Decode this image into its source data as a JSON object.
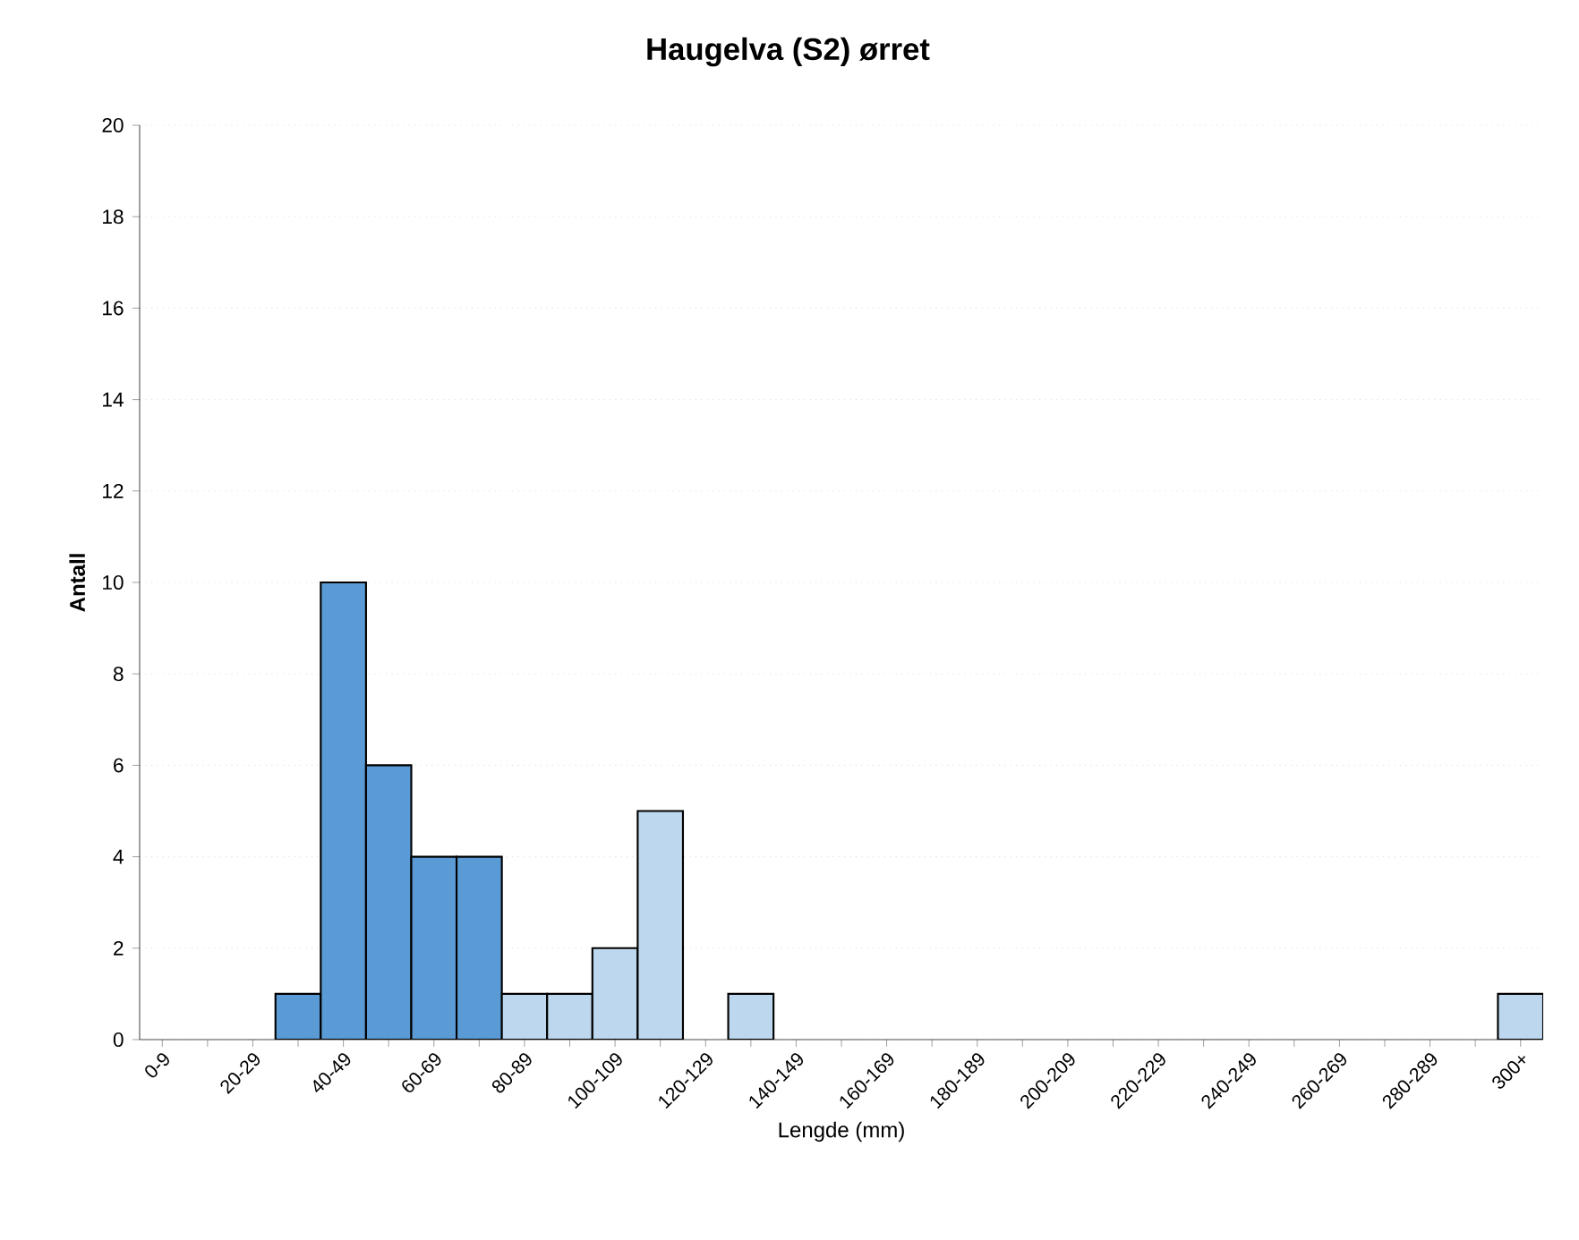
{
  "chart_data": {
    "type": "bar",
    "title": "Haugelva (S2) ørret",
    "xlabel": "Lengde (mm)",
    "ylabel": "Antall",
    "categories": [
      "0-9",
      null,
      "20-29",
      null,
      "40-49",
      null,
      "60-69",
      null,
      "80-89",
      null,
      "100-109",
      null,
      "120-129",
      null,
      "140-149",
      null,
      "160-169",
      null,
      "180-189",
      null,
      "200-209",
      null,
      "220-229",
      null,
      "240-249",
      null,
      "260-269",
      null,
      "280-289",
      null,
      "300+"
    ],
    "values": [
      0,
      0,
      0,
      1,
      10,
      6,
      4,
      4,
      1,
      1,
      2,
      5,
      0,
      1,
      0,
      0,
      0,
      0,
      0,
      0,
      0,
      0,
      0,
      0,
      0,
      0,
      0,
      0,
      0,
      0,
      1
    ],
    "colors": [
      "#5b9bd5",
      "#5b9bd5",
      "#5b9bd5",
      "#5b9bd5",
      "#5b9bd5",
      "#5b9bd5",
      "#5b9bd5",
      "#5b9bd5",
      "#bdd7ee",
      "#bdd7ee",
      "#bdd7ee",
      "#bdd7ee",
      "#bdd7ee",
      "#bdd7ee",
      "#bdd7ee",
      "#bdd7ee",
      "#bdd7ee",
      "#bdd7ee",
      "#bdd7ee",
      "#bdd7ee",
      "#bdd7ee",
      "#bdd7ee",
      "#bdd7ee",
      "#bdd7ee",
      "#bdd7ee",
      "#bdd7ee",
      "#bdd7ee",
      "#bdd7ee",
      "#bdd7ee",
      "#bdd7ee",
      "#bdd7ee"
    ],
    "ylim": [
      0,
      20
    ],
    "yticks": [
      0,
      2,
      4,
      6,
      8,
      10,
      12,
      14,
      16,
      18,
      20
    ],
    "grid": "y"
  }
}
